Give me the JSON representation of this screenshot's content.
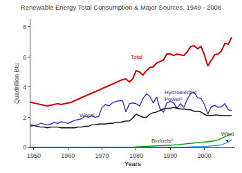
{
  "chart_data": {
    "type": "line",
    "title": "Renewable Energy Total Consumption & Major Sources, 1949 - 2008",
    "x_label": "Years",
    "y_label": "Quadrillion Btu",
    "x": [
      1949,
      1950,
      1951,
      1952,
      1953,
      1954,
      1955,
      1956,
      1957,
      1958,
      1959,
      1960,
      1961,
      1962,
      1963,
      1964,
      1965,
      1966,
      1967,
      1968,
      1969,
      1970,
      1971,
      1972,
      1973,
      1974,
      1975,
      1976,
      1977,
      1978,
      1979,
      1980,
      1981,
      1982,
      1983,
      1984,
      1985,
      1986,
      1987,
      1988,
      1989,
      1990,
      1991,
      1992,
      1993,
      1994,
      1995,
      1996,
      1997,
      1998,
      1999,
      2000,
      2001,
      2002,
      2003,
      2004,
      2005,
      2006,
      2007,
      2008
    ],
    "series": [
      {
        "color": "#cc0000",
        "values": [
          3.0,
          2.95,
          2.9,
          2.85,
          2.8,
          2.75,
          2.8,
          2.85,
          2.9,
          2.85,
          2.9,
          2.95,
          3.0,
          3.1,
          3.2,
          3.3,
          3.4,
          3.5,
          3.6,
          3.7,
          3.8,
          3.9,
          4.0,
          4.1,
          4.2,
          4.3,
          4.4,
          4.5,
          4.55,
          4.35,
          4.55,
          5.1,
          5.0,
          4.8,
          5.1,
          5.3,
          5.35,
          5.6,
          5.7,
          5.8,
          6.2,
          6.2,
          6.1,
          6.2,
          6.15,
          6.1,
          6.35,
          6.7,
          6.75,
          6.55,
          6.7,
          6.15,
          5.4,
          5.8,
          6.15,
          6.2,
          6.4,
          6.9,
          6.85,
          7.3
        ]
      },
      {
        "color": "#3333cc",
        "values": [
          1.4,
          1.45,
          1.5,
          1.6,
          1.55,
          1.5,
          1.55,
          1.65,
          1.6,
          1.7,
          1.65,
          1.6,
          1.7,
          1.8,
          1.85,
          1.9,
          2.1,
          2.0,
          2.1,
          2.0,
          2.05,
          2.65,
          2.85,
          2.75,
          2.95,
          3.05,
          3.1,
          3.1,
          2.35,
          2.9,
          2.95,
          2.9,
          2.75,
          3.25,
          3.55,
          3.4,
          2.95,
          3.35,
          2.55,
          2.35,
          2.95,
          3.05,
          2.95,
          2.6,
          2.9,
          2.65,
          3.2,
          3.6,
          3.65,
          3.3,
          3.25,
          2.85,
          2.2,
          2.7,
          2.8,
          2.65,
          2.7,
          2.9,
          2.5,
          2.45
        ]
      },
      {
        "color": "#000000",
        "values": [
          1.5,
          1.45,
          1.4,
          1.35,
          1.35,
          1.3,
          1.35,
          1.35,
          1.35,
          1.3,
          1.3,
          1.3,
          1.3,
          1.3,
          1.35,
          1.35,
          1.4,
          1.4,
          1.5,
          1.5,
          1.55,
          1.55,
          1.55,
          1.6,
          1.6,
          1.65,
          1.65,
          1.7,
          1.75,
          1.75,
          1.95,
          2.2,
          2.1,
          2.0,
          2.0,
          2.2,
          2.3,
          2.35,
          2.45,
          2.55,
          2.6,
          2.6,
          2.65,
          2.6,
          2.55,
          2.55,
          2.5,
          2.5,
          2.4,
          2.4,
          2.35,
          2.2,
          2.1,
          2.1,
          2.15,
          2.15,
          2.1,
          2.1,
          2.1,
          2.1
        ]
      },
      {
        "color": "#009900",
        "values": [
          0.0,
          0.0,
          0.0,
          0.0,
          0.0,
          0.0,
          0.0,
          0.0,
          0.0,
          0.0,
          0.0,
          0.0,
          0.0,
          0.0,
          0.0,
          0.0,
          0.0,
          0.0,
          0.0,
          0.0,
          0.0,
          0.0,
          0.0,
          0.0,
          0.0,
          0.0,
          0.0,
          0.0,
          0.0,
          0.0,
          0.01,
          0.04,
          0.05,
          0.06,
          0.07,
          0.08,
          0.09,
          0.09,
          0.1,
          0.1,
          0.12,
          0.14,
          0.16,
          0.18,
          0.2,
          0.22,
          0.25,
          0.27,
          0.3,
          0.32,
          0.33,
          0.35,
          0.38,
          0.4,
          0.45,
          0.5,
          0.6,
          0.7,
          0.8,
          0.9
        ]
      },
      {
        "color": "#3399ff",
        "values": [
          0.0,
          0.0,
          0.0,
          0.0,
          0.0,
          0.0,
          0.0,
          0.0,
          0.0,
          0.0,
          0.0,
          0.0,
          0.0,
          0.0,
          0.0,
          0.0,
          0.0,
          0.0,
          0.0,
          0.0,
          0.0,
          0.0,
          0.0,
          0.0,
          0.0,
          0.0,
          0.0,
          0.0,
          0.0,
          0.0,
          0.0,
          0.0,
          0.0,
          0.0,
          0.01,
          0.01,
          0.01,
          0.01,
          0.01,
          0.01,
          0.02,
          0.02,
          0.02,
          0.02,
          0.03,
          0.03,
          0.03,
          0.04,
          0.04,
          0.04,
          0.05,
          0.06,
          0.07,
          0.1,
          0.11,
          0.14,
          0.18,
          0.26,
          0.34,
          0.52
        ]
      }
    ],
    "annotations": [
      {
        "text": "Total",
        "x": 1978,
        "y": 5.7,
        "color": "#cc0000"
      },
      {
        "text": "Wood",
        "x": 1963,
        "y": 1.82,
        "color": "#444444"
      },
      {
        "text": "Hydroelectric\nPower²",
        "x": 1988,
        "y": 2.9,
        "color": "#3333cc"
      },
      {
        "text": "Biofuels²",
        "x": 1984,
        "y": 0.16,
        "color": "#444444"
      },
      {
        "text": "Wind",
        "x": 2004.5,
        "y": 0.6,
        "color": "#444444",
        "arrow": {
          "from": [
            2006.2,
            0.57
          ],
          "to": [
            2007,
            0.37
          ],
          "color": "#000000"
        }
      }
    ],
    "xlim": [
      1949,
      2009
    ],
    "ylim": [
      0,
      8.5
    ],
    "xticks": [
      1950,
      1960,
      1970,
      1980,
      1990,
      2000
    ],
    "yticks": [
      0,
      2,
      4,
      6,
      8
    ],
    "grid": false
  }
}
